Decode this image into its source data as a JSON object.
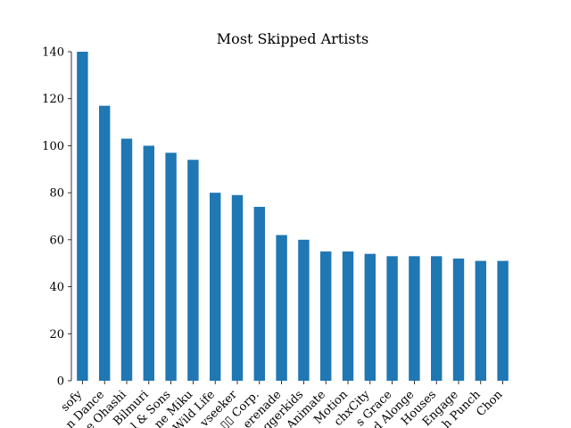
{
  "chart_data": {
    "type": "bar",
    "title": "Most Skipped Artists",
    "xlabel": "",
    "ylabel": "",
    "categories": [
      "sofy",
      "n Dance",
      "e Ohashi",
      "Bilmuri",
      "l & Sons",
      "ne Miku",
      "Wild Life",
      "vseeker",
      "▯▯ Corp.",
      "erenade",
      "ggerkids",
      "Animate",
      "Motion",
      "chxCity",
      "s Grace",
      "d Alonge",
      "Houses",
      "Engage",
      "h Punch",
      "Chon"
    ],
    "values": [
      140,
      117,
      103,
      100,
      97,
      94,
      80,
      79,
      74,
      62,
      60,
      55,
      55,
      54,
      53,
      53,
      53,
      52,
      51,
      51
    ],
    "ylim": [
      0,
      140
    ],
    "yticks": [
      0,
      20,
      40,
      60,
      80,
      100,
      120,
      140
    ],
    "grid": false,
    "colors": {
      "bar": "#1f77b4",
      "axis": "#000000",
      "background": "#ffffff"
    }
  }
}
